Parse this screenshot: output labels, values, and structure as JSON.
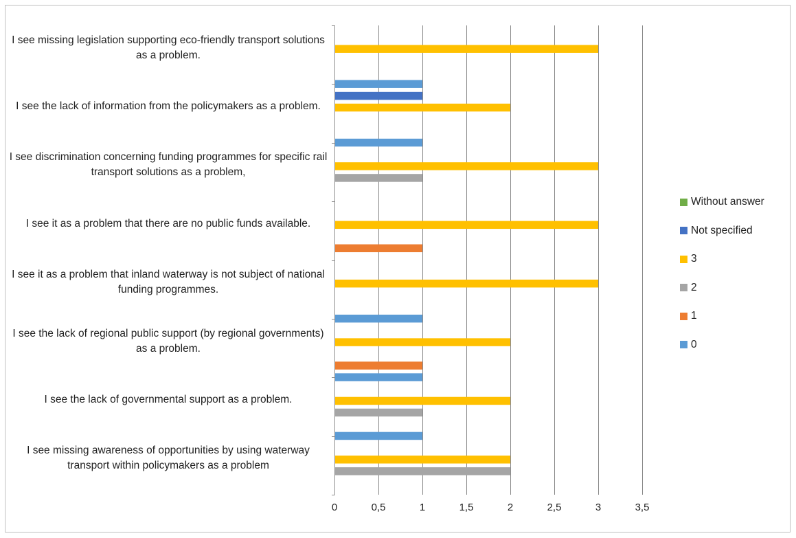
{
  "chart_data": {
    "type": "bar",
    "orientation": "horizontal",
    "categories": [
      "I see missing awareness of opportunities by using waterway transport within policymakers as a problem",
      "I see the lack of governmental support as a problem.",
      "I see the lack of regional public support (by regional governments) as a problem.",
      "I see it as a problem that inland waterway is not subject of national funding programmes.",
      "I see it as a problem that there are no public funds available.",
      "I see discrimination concerning funding programmes for specific rail transport solutions as a problem,",
      "I see the lack of information from the policymakers as a problem.",
      "I see missing legislation supporting eco-friendly transport solutions as a problem."
    ],
    "series": [
      {
        "name": "0",
        "color": "#5b9bd5",
        "values": [
          0,
          1,
          1,
          1,
          0,
          0,
          1,
          1
        ]
      },
      {
        "name": "1",
        "color": "#ed7d31",
        "values": [
          0,
          0,
          1,
          0,
          1,
          0,
          0,
          0
        ]
      },
      {
        "name": "2",
        "color": "#a5a5a5",
        "values": [
          2,
          1,
          0,
          0,
          0,
          1,
          0,
          0
        ]
      },
      {
        "name": "3",
        "color": "#ffc000",
        "values": [
          2,
          2,
          2,
          3,
          3,
          3,
          2,
          3
        ]
      },
      {
        "name": "Not specified",
        "color": "#4472c4",
        "values": [
          0,
          0,
          0,
          0,
          0,
          0,
          1,
          0
        ]
      },
      {
        "name": "Without answer",
        "color": "#70ad47",
        "values": [
          0,
          0,
          0,
          0,
          0,
          0,
          0,
          0
        ]
      }
    ],
    "xlim": [
      0,
      3.5
    ],
    "xticks": [
      "0",
      "0,5",
      "1",
      "1,5",
      "2",
      "2,5",
      "3",
      "3,5"
    ],
    "grid": true,
    "legend_position": "right",
    "title": "",
    "xlabel": "",
    "ylabel": ""
  }
}
